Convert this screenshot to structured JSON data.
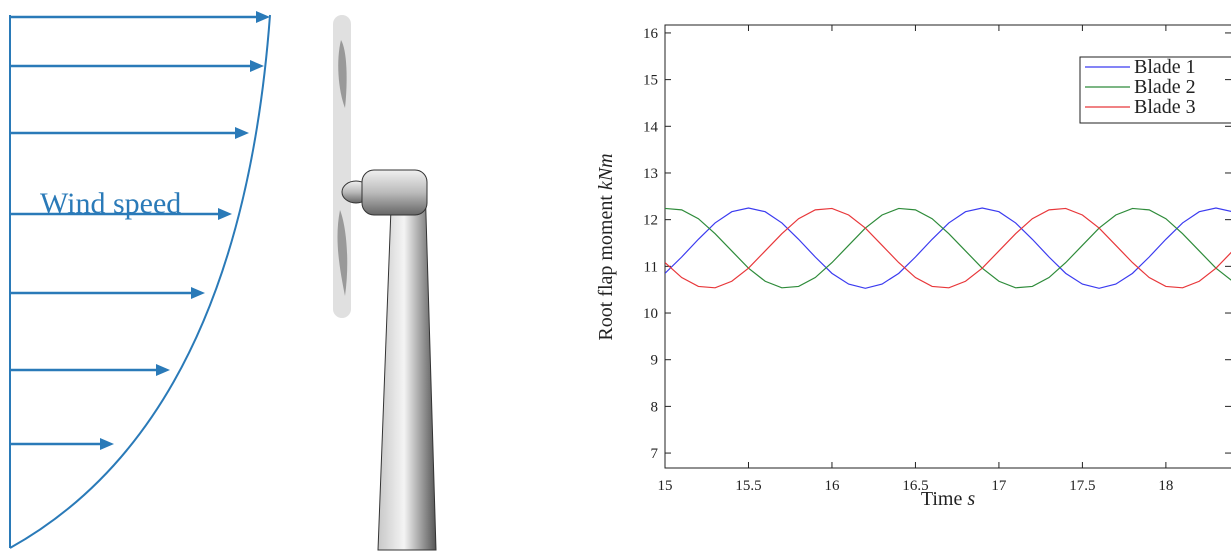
{
  "diagram": {
    "label": "Wind speed"
  },
  "chart_data": {
    "type": "line",
    "ylabel": "Root flap moment",
    "ylabel_unit": "kNm",
    "xlabel": "Time",
    "xlabel_unit": "s",
    "x": [
      15.0,
      15.1,
      15.2,
      15.3,
      15.4,
      15.5,
      15.6,
      15.7,
      15.8,
      15.9,
      16.0,
      16.1,
      16.2,
      16.3,
      16.4,
      16.5,
      16.6,
      16.7,
      16.8,
      16.9,
      17.0,
      17.1,
      17.2,
      17.3,
      17.4,
      17.5,
      17.6,
      17.7,
      17.8,
      17.9,
      18.0,
      18.1,
      18.2,
      18.3,
      18.4
    ],
    "series": [
      {
        "name": "Blade 1",
        "color": "#3b3bf0",
        "values": [
          10.85,
          11.2,
          11.58,
          11.93,
          12.17,
          12.25,
          12.17,
          11.93,
          11.58,
          11.2,
          10.85,
          10.62,
          10.53,
          10.62,
          10.85,
          11.2,
          11.58,
          11.93,
          12.17,
          12.25,
          12.17,
          11.93,
          11.58,
          11.2,
          10.85,
          10.62,
          10.53,
          10.62,
          10.85,
          11.2,
          11.58,
          11.93,
          12.17,
          12.25,
          12.17
        ]
      },
      {
        "name": "Blade 2",
        "color": "#2e8b3a",
        "values": [
          12.24,
          12.21,
          12.02,
          11.7,
          11.33,
          10.96,
          10.68,
          10.54,
          10.57,
          10.76,
          11.08,
          11.45,
          11.82,
          12.1,
          12.24,
          12.21,
          12.02,
          11.7,
          11.33,
          10.96,
          10.68,
          10.54,
          10.57,
          10.76,
          11.08,
          11.45,
          11.82,
          12.1,
          12.24,
          12.21,
          12.02,
          11.7,
          11.33,
          10.96,
          10.68
        ]
      },
      {
        "name": "Blade 3",
        "color": "#e8373a",
        "values": [
          11.08,
          10.76,
          10.57,
          10.54,
          10.68,
          10.96,
          11.33,
          11.7,
          12.02,
          12.21,
          12.24,
          12.1,
          11.82,
          11.45,
          11.08,
          10.76,
          10.57,
          10.54,
          10.68,
          10.96,
          11.33,
          11.7,
          12.02,
          12.21,
          12.24,
          12.1,
          11.82,
          11.45,
          11.08,
          10.76,
          10.57,
          10.54,
          10.68,
          10.96,
          11.33
        ]
      }
    ],
    "xlim": [
      15,
      18.39
    ],
    "ylim": [
      6.68,
      16.17
    ],
    "xticks": [
      15,
      15.5,
      16,
      16.5,
      17,
      17.5,
      18
    ],
    "yticks": [
      7,
      8,
      9,
      10,
      11,
      12,
      13,
      14,
      15,
      16
    ],
    "legend": "upper right"
  }
}
